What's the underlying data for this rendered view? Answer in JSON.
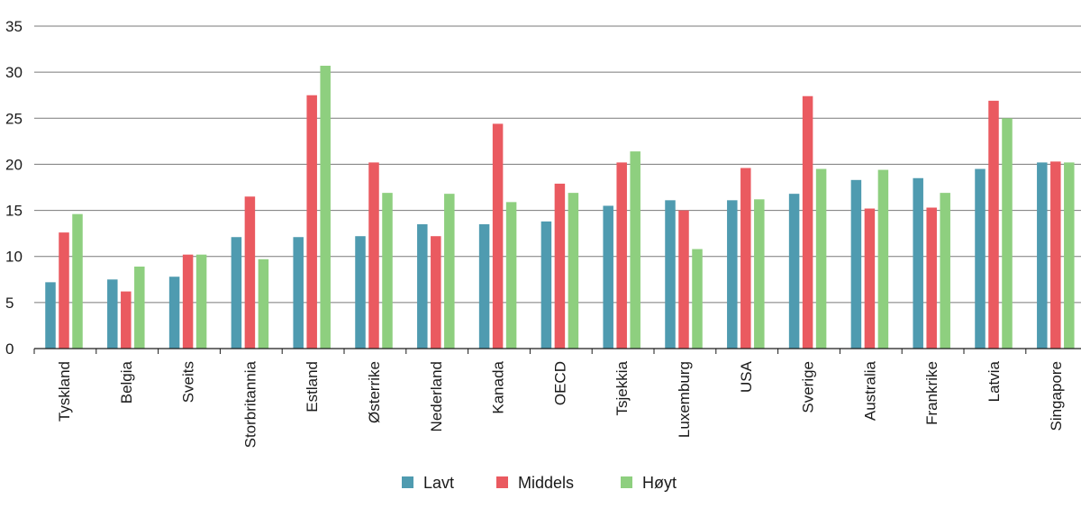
{
  "chart_data": {
    "type": "bar",
    "categories": [
      "Tyskland",
      "Belgia",
      "Sveits",
      "Storbritannia",
      "Estland",
      "Østerrike",
      "Nederland",
      "Kanada",
      "OECD",
      "Tsjekkia",
      "Luxemburg",
      "USA",
      "Sverige",
      "Australia",
      "Frankrike",
      "Latvia",
      "Singapore"
    ],
    "series": [
      {
        "name": "Lavt",
        "color": "#4f9bb0",
        "values": [
          7.2,
          7.5,
          7.8,
          12.1,
          12.1,
          12.2,
          13.5,
          13.5,
          13.8,
          15.5,
          16.1,
          16.1,
          16.8,
          18.3,
          18.5,
          19.5,
          20.2
        ]
      },
      {
        "name": "Middels",
        "color": "#ea5a60",
        "values": [
          12.6,
          6.2,
          10.2,
          16.5,
          27.5,
          20.2,
          12.2,
          24.4,
          17.9,
          20.2,
          15.0,
          19.6,
          27.4,
          15.2,
          15.3,
          26.9,
          20.3
        ]
      },
      {
        "name": "Høyt",
        "color": "#8ecf7f",
        "values": [
          14.6,
          8.9,
          10.2,
          9.7,
          30.7,
          16.9,
          16.8,
          15.9,
          16.9,
          21.4,
          10.8,
          16.2,
          19.5,
          19.4,
          16.9,
          25.0,
          20.2
        ]
      }
    ],
    "yticks": [
      "0",
      "5",
      "10",
      "15",
      "20",
      "25",
      "30",
      "35"
    ],
    "ylim": [
      0,
      35
    ],
    "grid": true,
    "legend_position": "bottom-center",
    "title": "",
    "xlabel": "",
    "ylabel": ""
  }
}
